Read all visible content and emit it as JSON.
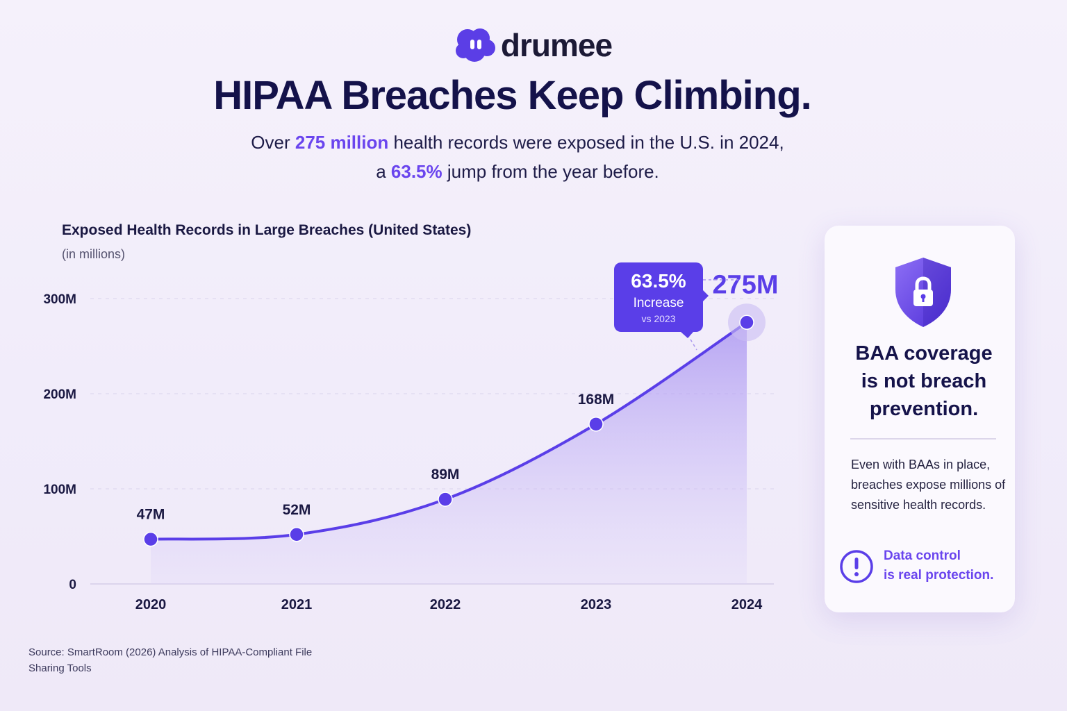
{
  "brand": {
    "name": "drumee",
    "logo_color": "#5b3ee6"
  },
  "header": {
    "title": "HIPAA Breaches Keep Climbing.",
    "subtitle_line1": {
      "before": "Over ",
      "highlight": "275 million",
      "after": " health records were exposed in the U.S. in 2024,"
    },
    "subtitle_line2": {
      "before": "a ",
      "highlight": "63.5%",
      "after": " jump from the year before."
    }
  },
  "chart_data": {
    "type": "area",
    "title": "Exposed Health Records in Large Breaches (United States)",
    "subtitle": "(in millions)",
    "categories": [
      "2020",
      "2021",
      "2022",
      "2023",
      "2024"
    ],
    "values": [
      47,
      52,
      89,
      168,
      275
    ],
    "data_labels": [
      "47M",
      "52M",
      "89M",
      "168M",
      "275M"
    ],
    "y_ticks": [
      0,
      100,
      200,
      300
    ],
    "y_tick_labels": [
      "0",
      "100M",
      "200M",
      "300M"
    ],
    "ylim": [
      0,
      300
    ],
    "grid": true,
    "line_color": "#5a3ee8",
    "fill_color": "#a48ef0",
    "callout": {
      "value": "63.5%",
      "label": "Increase",
      "note": "vs 2023",
      "color": "#5a3ee8"
    }
  },
  "sidebar_card": {
    "icon": "shield-lock-icon",
    "headline_lines": [
      "BAA coverage",
      "is not breach",
      "prevention."
    ],
    "body": "Even with BAAs in place, breaches expose millions of sensitive health records.",
    "cta_line1": "Data control",
    "cta_line2": "is real protection.",
    "cta_icon": "alert-icon",
    "accent": "#6a45ee"
  },
  "footer": {
    "source": "Source: SmartRoom (2026) Analysis of HIPAA-Compliant File Sharing Tools"
  }
}
